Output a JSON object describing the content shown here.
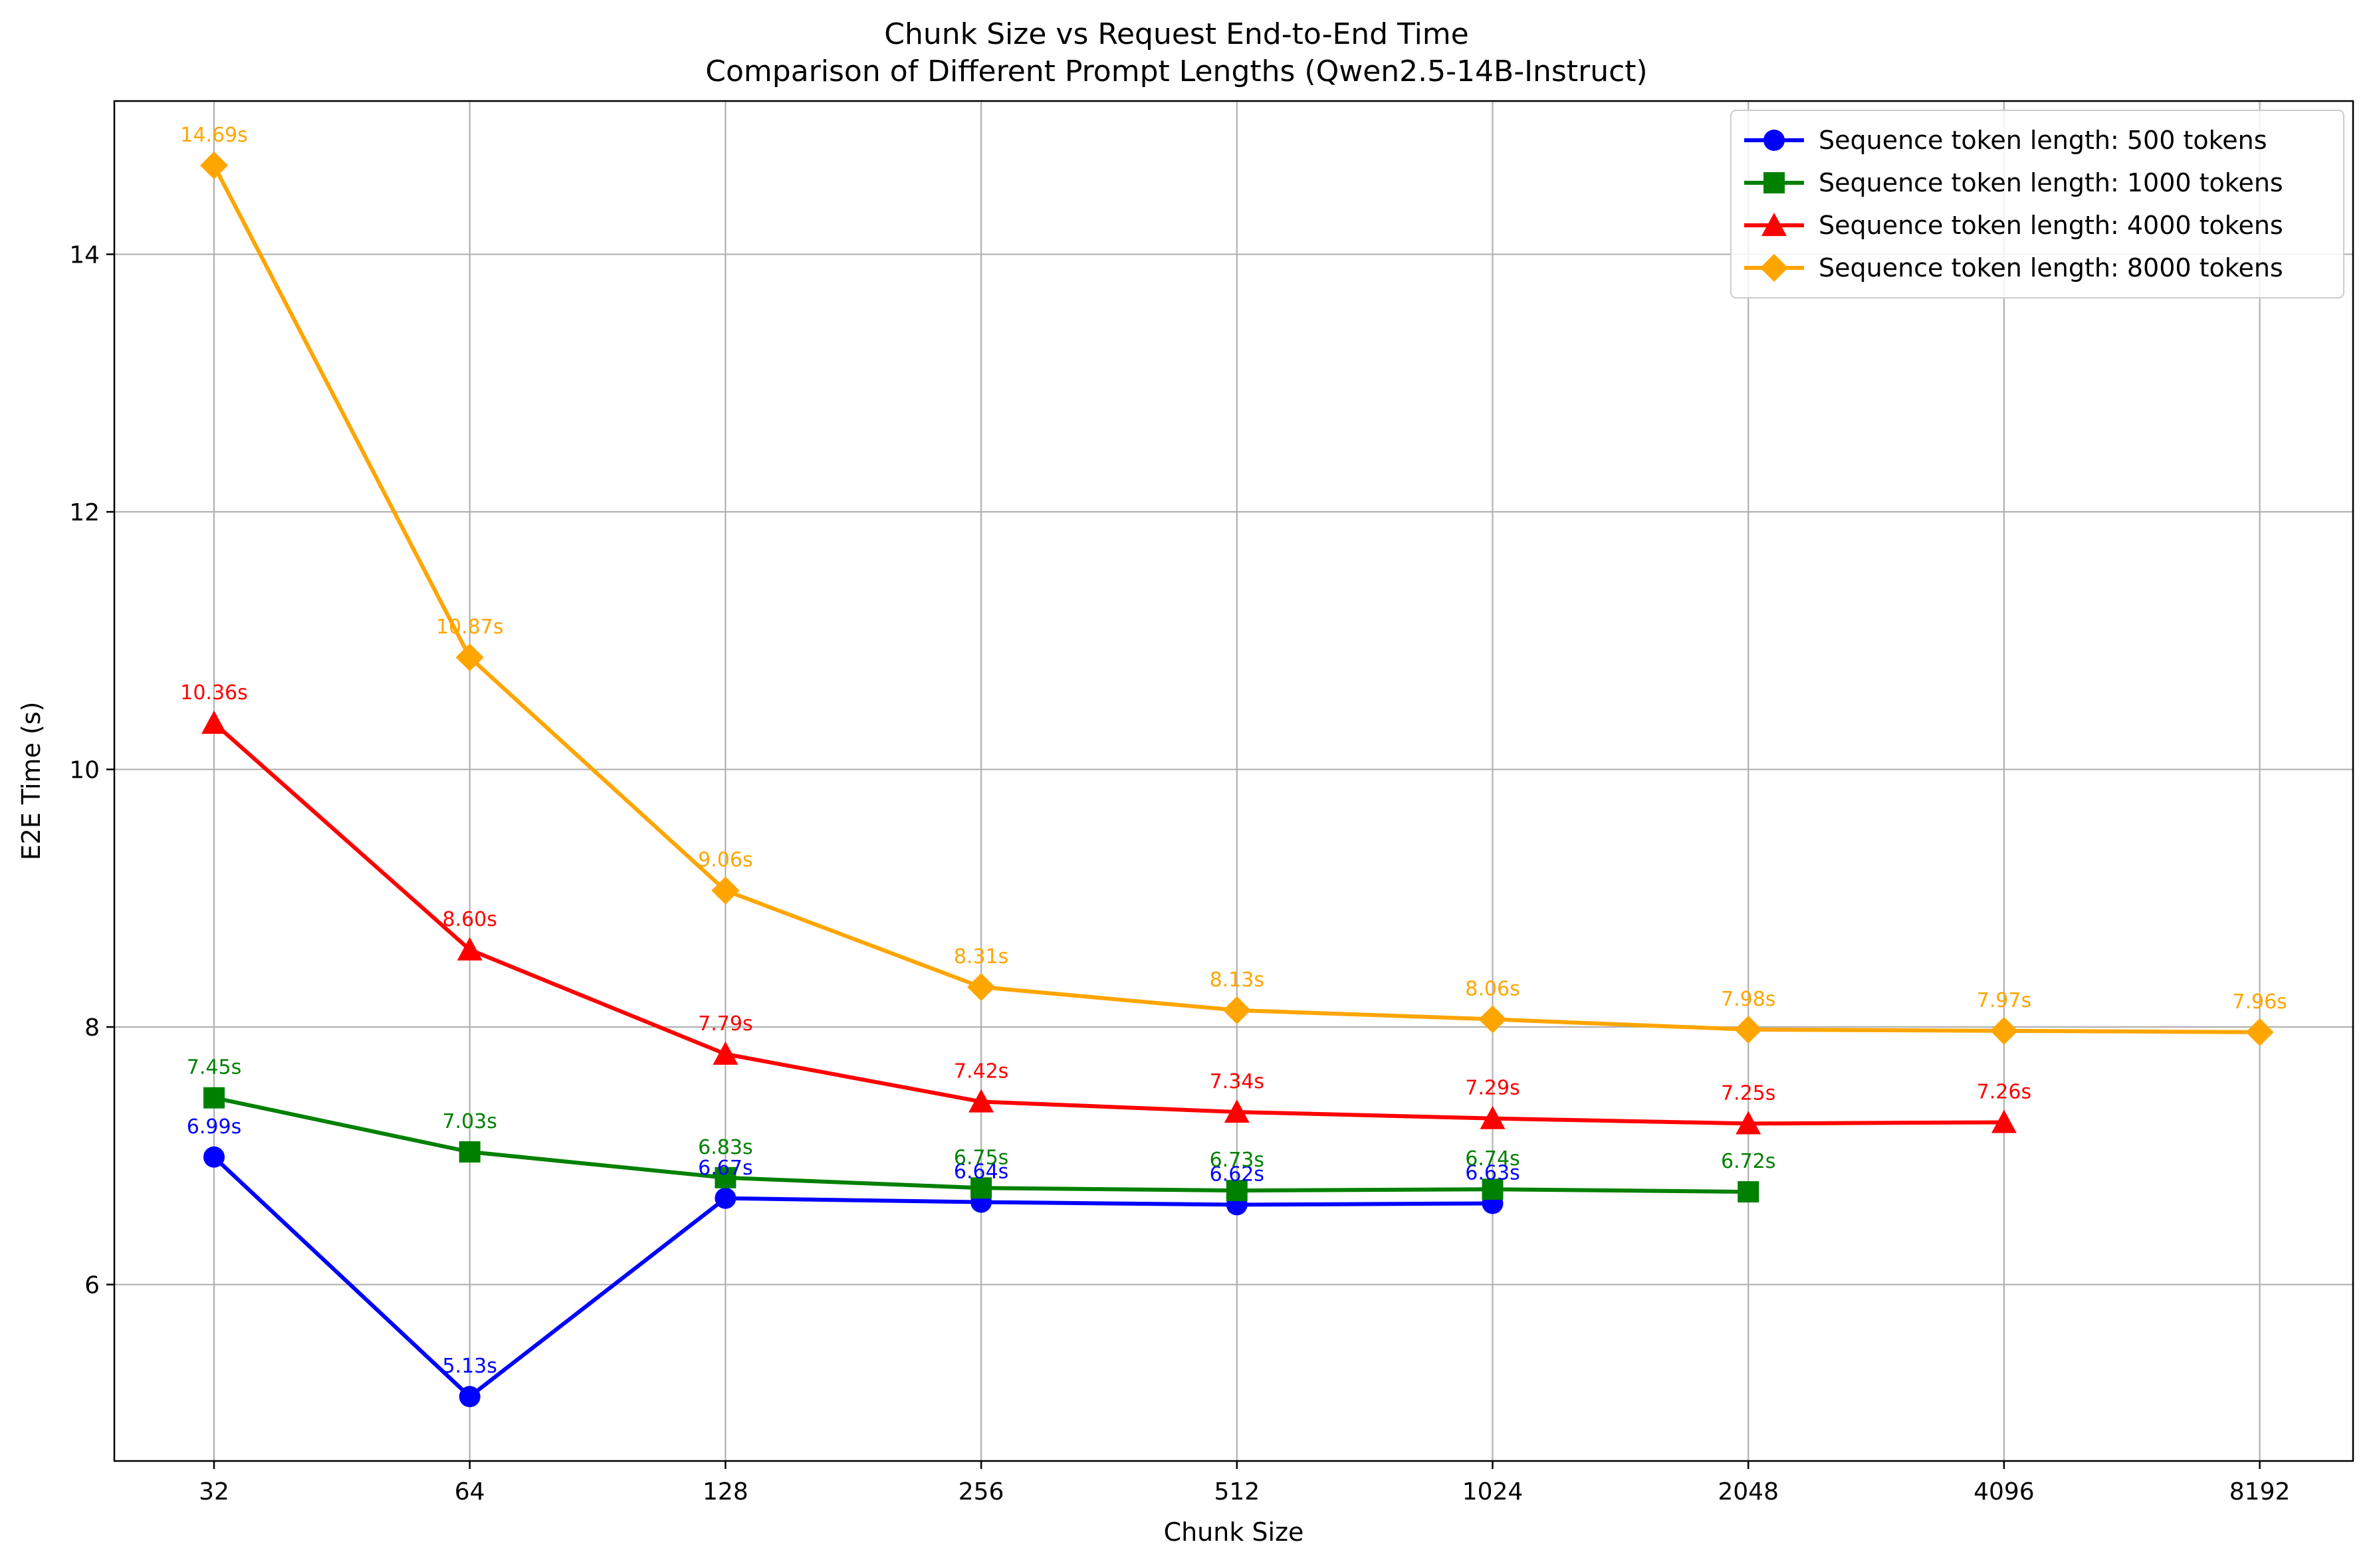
{
  "chart_data": {
    "type": "line",
    "title": "Chunk Size vs Request End-to-End Time",
    "subtitle": "Comparison of Different Prompt Lengths (Qwen2.5-14B-Instruct)",
    "xlabel": "Chunk Size",
    "ylabel": "E2E Time (s)",
    "x_scale": "log2",
    "categories": [
      "32",
      "64",
      "128",
      "256",
      "512",
      "1024",
      "2048",
      "4096",
      "8192"
    ],
    "x": [
      32,
      64,
      128,
      256,
      512,
      1024,
      2048,
      4096,
      8192
    ],
    "ylim": [
      4.63,
      15.19
    ],
    "yticks": [
      6,
      8,
      10,
      12,
      14
    ],
    "ytick_labels": [
      "6",
      "8",
      "10",
      "12",
      "14"
    ],
    "grid": true,
    "legend_position": "top-right",
    "series": [
      {
        "name": "Sequence token length: 500 tokens",
        "color": "#0000ff",
        "marker": "circle",
        "x": [
          32,
          64,
          128,
          256,
          512,
          1024
        ],
        "values": [
          6.99,
          5.13,
          6.67,
          6.64,
          6.62,
          6.63
        ],
        "labels": [
          "6.99s",
          "5.13s",
          "6.67s",
          "6.64s",
          "6.62s",
          "6.63s"
        ]
      },
      {
        "name": "Sequence token length: 1000 tokens",
        "color": "#008000",
        "marker": "square",
        "x": [
          32,
          64,
          128,
          256,
          512,
          1024,
          2048
        ],
        "values": [
          7.45,
          7.03,
          6.83,
          6.75,
          6.73,
          6.74,
          6.72
        ],
        "labels": [
          "7.45s",
          "7.03s",
          "6.83s",
          "6.75s",
          "6.73s",
          "6.74s",
          "6.72s"
        ]
      },
      {
        "name": "Sequence token length: 4000 tokens",
        "color": "#ff0000",
        "marker": "triangle",
        "x": [
          32,
          64,
          128,
          256,
          512,
          1024,
          2048,
          4096
        ],
        "values": [
          10.36,
          8.6,
          7.79,
          7.42,
          7.34,
          7.29,
          7.25,
          7.26
        ],
        "labels": [
          "10.36s",
          "8.60s",
          "7.79s",
          "7.42s",
          "7.34s",
          "7.29s",
          "7.25s",
          "7.26s"
        ]
      },
      {
        "name": "Sequence token length: 8000 tokens",
        "color": "#ffa500",
        "marker": "diamond",
        "x": [
          32,
          64,
          128,
          256,
          512,
          1024,
          2048,
          4096,
          8192
        ],
        "values": [
          14.69,
          10.87,
          9.06,
          8.31,
          8.13,
          8.06,
          7.98,
          7.97,
          7.96
        ],
        "labels": [
          "14.69s",
          "10.87s",
          "9.06s",
          "8.31s",
          "8.13s",
          "8.06s",
          "7.98s",
          "7.97s",
          "7.96s"
        ]
      }
    ]
  }
}
